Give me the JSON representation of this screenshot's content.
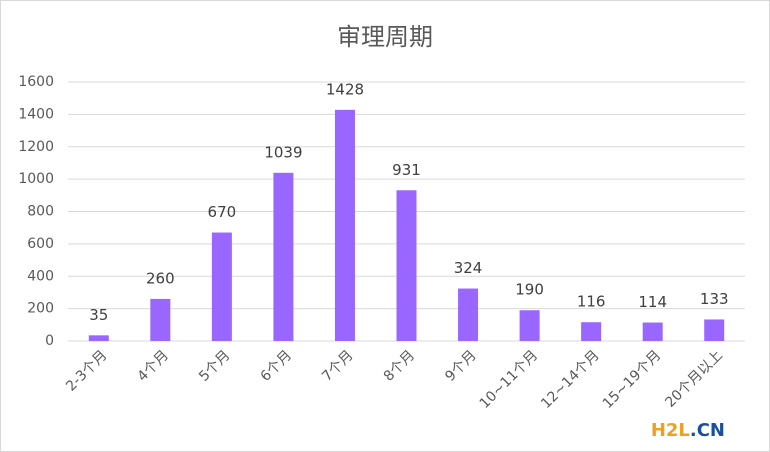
{
  "chart_data": {
    "type": "bar",
    "title": "审理周期",
    "categories": [
      "2-3个月",
      "4个月",
      "5个月",
      "6个月",
      "7个月",
      "8个月",
      "9个月",
      "10~11个月",
      "12~14个月",
      "15~19个月",
      "20个月以上"
    ],
    "values": [
      35,
      260,
      670,
      1039,
      1428,
      931,
      324,
      190,
      116,
      114,
      133
    ],
    "color": "#9966ff",
    "ylim": [
      0,
      1600
    ],
    "yticks": [
      0,
      200,
      400,
      600,
      800,
      1000,
      1200,
      1400,
      1600
    ],
    "grid": true
  },
  "watermark": [
    "H2L",
    ".CN"
  ]
}
